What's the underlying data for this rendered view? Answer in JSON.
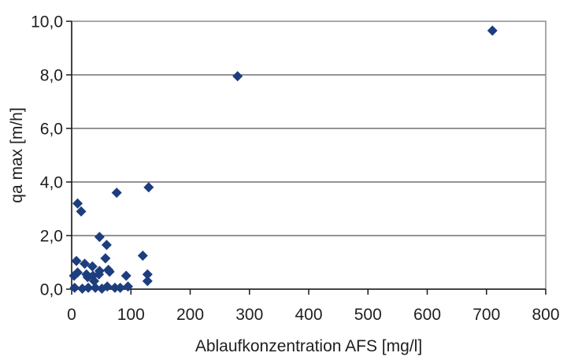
{
  "chart_data": {
    "type": "scatter",
    "title": "",
    "xlabel": "Ablaufkonzentration AFS [mg/l]",
    "ylabel": "qa max [m/h]",
    "xlim": [
      0,
      800
    ],
    "ylim": [
      0,
      10
    ],
    "x_ticks": [
      0,
      100,
      200,
      300,
      400,
      500,
      600,
      700,
      800
    ],
    "x_tick_labels": [
      "0",
      "100",
      "200",
      "300",
      "400",
      "500",
      "600",
      "700",
      "800"
    ],
    "y_ticks": [
      0,
      2,
      4,
      6,
      8,
      10
    ],
    "y_tick_labels": [
      "0,0",
      "2,0",
      "4,0",
      "6,0",
      "8,0",
      "10,0"
    ],
    "decimal_separator": ",",
    "grid": "horizontal",
    "legend": "none",
    "marker": "diamond",
    "series": [
      {
        "name": "qa max",
        "points": [
          [
            710,
            9.65
          ],
          [
            280,
            7.95
          ],
          [
            130,
            3.8
          ],
          [
            76,
            3.6
          ],
          [
            10,
            3.2
          ],
          [
            16,
            2.9
          ],
          [
            47,
            1.95
          ],
          [
            59,
            1.65
          ],
          [
            57,
            1.15
          ],
          [
            120,
            1.25
          ],
          [
            8,
            1.05
          ],
          [
            22,
            0.95
          ],
          [
            35,
            0.85
          ],
          [
            10,
            0.62
          ],
          [
            25,
            0.55
          ],
          [
            36,
            0.5
          ],
          [
            47,
            0.68
          ],
          [
            62,
            0.72
          ],
          [
            4,
            0.5
          ],
          [
            27,
            0.45
          ],
          [
            38,
            0.3
          ],
          [
            46,
            0.55
          ],
          [
            64,
            0.65
          ],
          [
            92,
            0.5
          ],
          [
            128,
            0.55
          ],
          [
            128,
            0.3
          ],
          [
            5,
            0.05
          ],
          [
            18,
            0.02
          ],
          [
            28,
            0.05
          ],
          [
            40,
            0.05
          ],
          [
            51,
            0.02
          ],
          [
            60,
            0.1
          ],
          [
            73,
            0.05
          ],
          [
            82,
            0.05
          ],
          [
            95,
            0.1
          ]
        ]
      }
    ]
  },
  "colors": {
    "marker": "#1d3e7e",
    "gridline": "#2a2a2a",
    "plot_border": "#8c8c8c",
    "axis": "#1a1a1a",
    "text": "#1f1f1f",
    "background": "#ffffff"
  }
}
